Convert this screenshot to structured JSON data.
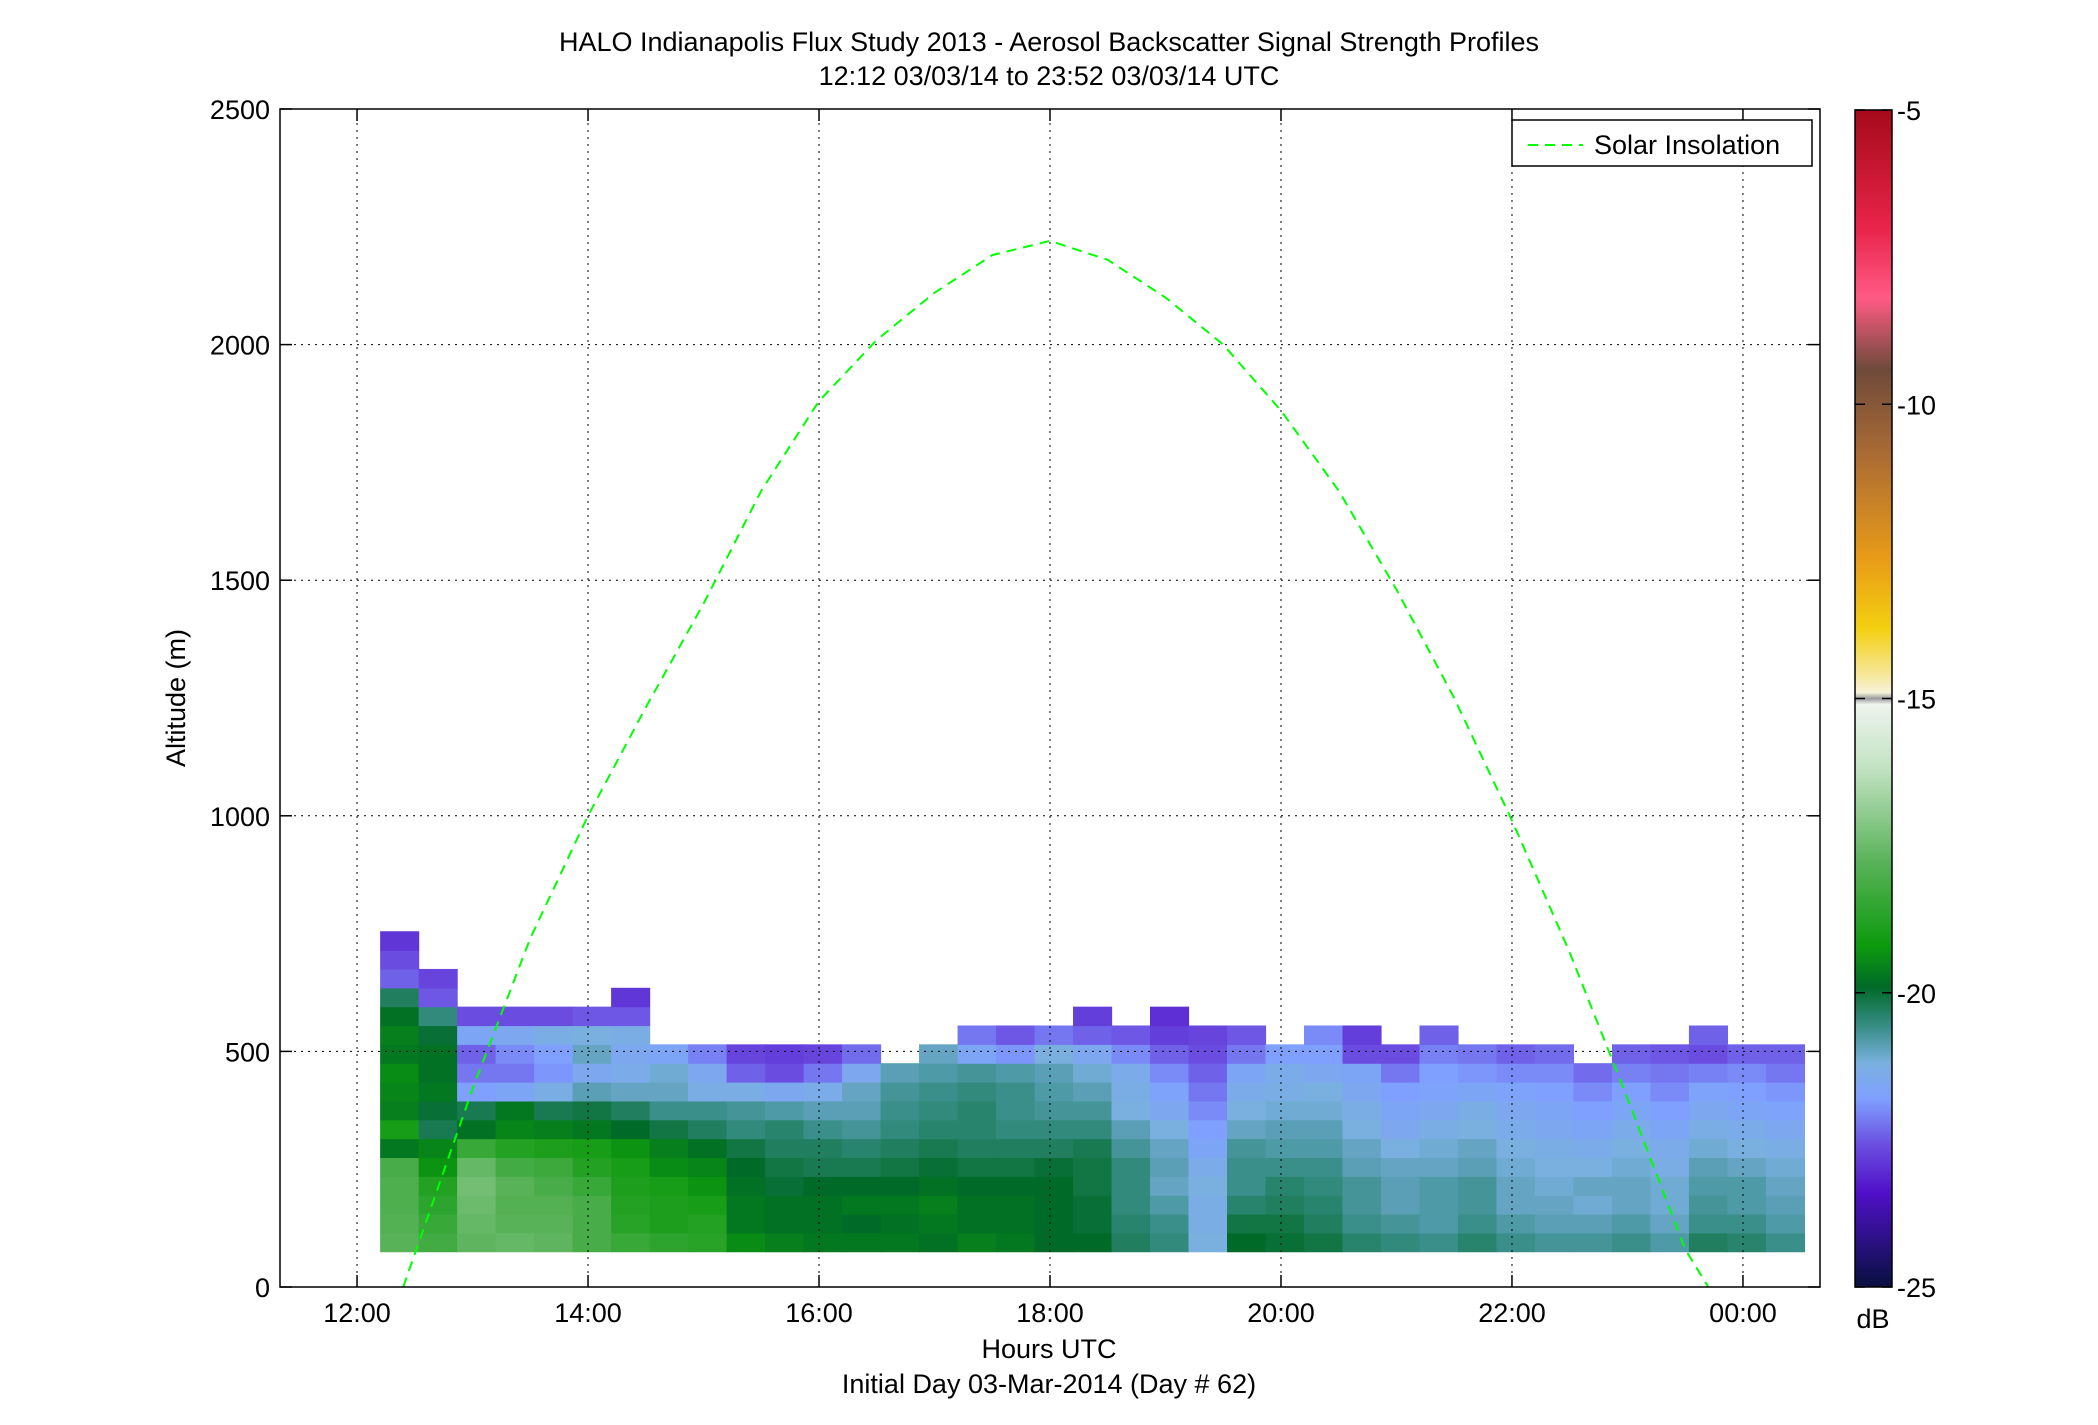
{
  "chart_data": {
    "type": "heatmap",
    "title": "HALO Indianapolis Flux Study 2013 - Aerosol Backscatter Signal Strength Profiles",
    "subtitle": "12:12 03/03/14 to 23:52 03/03/14  UTC",
    "xlabel": "Hours UTC",
    "xlabel2": "Initial Day 03-Mar-2014 (Day # 62)",
    "ylabel": "Altitude (m)",
    "x_ticks": [
      "12:00",
      "14:00",
      "16:00",
      "18:00",
      "20:00",
      "22:00",
      "00:00"
    ],
    "x_tick_hours": [
      12,
      14,
      16,
      18,
      20,
      22,
      24
    ],
    "xlim_hours": [
      11.333,
      24.667
    ],
    "y_ticks": [
      "0",
      "500",
      "1000",
      "1500",
      "2000",
      "2500"
    ],
    "y_tick_values": [
      0,
      500,
      1000,
      1500,
      2000,
      2500
    ],
    "ylim": [
      0,
      2500
    ],
    "grid": true,
    "legend": {
      "position": "top-right",
      "entries": [
        "Solar Insolation"
      ]
    },
    "colorbar": {
      "label": "dB",
      "ticks": [
        "-5",
        "-10",
        "-15",
        "-20",
        "-25"
      ],
      "tick_values": [
        -5,
        -10,
        -15,
        -20,
        -25
      ],
      "range": [
        -25,
        -5
      ]
    },
    "heatmap": {
      "time_start_hours": 12.2,
      "time_step_hours": 0.3333,
      "alt_start_m": 75,
      "alt_step_m": 40,
      "columns": [
        [
          -17.8,
          -17.9,
          -18.0,
          -18.0,
          -18.1,
          -19.7,
          -19.0,
          -19.6,
          -19.5,
          -19.4,
          -19.7,
          -19.6,
          -19.8,
          -20.3,
          -22.4,
          -22.6,
          -22.9
        ],
        [
          -18.2,
          -18.4,
          -18.6,
          -18.8,
          -19.3,
          -19.5,
          -20.2,
          -20.0,
          -19.7,
          -19.8,
          -19.8,
          -20.0,
          -20.5,
          -22.5,
          -22.7
        ],
        [
          -17.7,
          -17.6,
          -17.5,
          -17.4,
          -17.6,
          -18.4,
          -19.8,
          -20.2,
          -21.8,
          -22.2,
          -22.4,
          -21.6,
          -22.6
        ],
        [
          -17.6,
          -17.8,
          -17.9,
          -17.8,
          -18.2,
          -18.8,
          -19.5,
          -19.7,
          -21.6,
          -22.2,
          -22.0,
          -21.5,
          -22.6
        ],
        [
          -17.7,
          -17.8,
          -17.9,
          -18.1,
          -18.3,
          -18.9,
          -19.6,
          -20.2,
          -21.3,
          -21.9,
          -21.8,
          -21.3,
          -22.6
        ],
        [
          -18.1,
          -18.1,
          -18.1,
          -18.4,
          -18.8,
          -19.0,
          -19.7,
          -20.1,
          -20.9,
          -21.5,
          -21.0,
          -21.2,
          -22.5
        ],
        [
          -18.4,
          -18.7,
          -18.8,
          -18.9,
          -19.0,
          -19.3,
          -19.9,
          -20.3,
          -21.0,
          -21.4,
          -21.5,
          -21.3,
          -22.5,
          -22.9
        ],
        [
          -18.6,
          -18.9,
          -18.9,
          -19.0,
          -19.4,
          -19.6,
          -20.1,
          -20.6,
          -21.0,
          -21.1,
          -21.6
        ],
        [
          -18.7,
          -18.8,
          -19.0,
          -19.3,
          -19.5,
          -19.8,
          -20.3,
          -20.6,
          -21.3,
          -21.5,
          -22.1
        ],
        [
          -19.4,
          -19.7,
          -19.7,
          -19.8,
          -19.9,
          -20.1,
          -20.5,
          -20.7,
          -21.3,
          -22.4,
          -22.7
        ],
        [
          -19.6,
          -19.8,
          -19.8,
          -20.0,
          -20.1,
          -20.3,
          -20.4,
          -20.8,
          -21.5,
          -22.6,
          -22.8
        ],
        [
          -19.7,
          -19.8,
          -19.8,
          -19.9,
          -20.2,
          -20.3,
          -20.6,
          -20.9,
          -21.4,
          -22.2,
          -22.7
        ],
        [
          -19.7,
          -19.9,
          -19.7,
          -19.9,
          -20.2,
          -20.4,
          -20.7,
          -20.9,
          -21.0,
          -21.5,
          -22.3
        ],
        [
          -19.7,
          -19.8,
          -19.7,
          -19.9,
          -20.1,
          -20.3,
          -20.5,
          -20.6,
          -20.7,
          -20.9
        ],
        [
          -19.8,
          -19.7,
          -19.6,
          -19.8,
          -20.0,
          -20.2,
          -20.4,
          -20.5,
          -20.6,
          -20.8,
          -21.0
        ],
        [
          -19.6,
          -19.8,
          -19.8,
          -19.9,
          -20.1,
          -20.3,
          -20.4,
          -20.4,
          -20.5,
          -20.7,
          -21.6,
          -22.2
        ],
        [
          -19.7,
          -19.8,
          -19.8,
          -19.9,
          -20.1,
          -20.3,
          -20.5,
          -20.6,
          -20.6,
          -20.8,
          -21.9,
          -22.5
        ],
        [
          -19.9,
          -19.9,
          -19.9,
          -19.9,
          -20.0,
          -20.3,
          -20.5,
          -20.7,
          -20.8,
          -20.9,
          -21.2,
          -22.2
        ],
        [
          -19.9,
          -20.0,
          -20.0,
          -20.1,
          -20.1,
          -20.2,
          -20.5,
          -20.7,
          -20.9,
          -21.1,
          -21.5,
          -22.4,
          -22.8
        ],
        [
          -20.3,
          -20.4,
          -20.5,
          -20.5,
          -20.5,
          -20.7,
          -20.9,
          -21.2,
          -21.3,
          -21.4,
          -22.0,
          -22.5
        ],
        [
          -20.5,
          -20.6,
          -20.8,
          -21.0,
          -20.9,
          -21.0,
          -21.2,
          -21.5,
          -21.7,
          -22.0,
          -22.4,
          -22.8,
          -23.0
        ],
        [
          -21.2,
          -21.3,
          -21.3,
          -21.2,
          -21.4,
          -21.6,
          -21.8,
          -22.0,
          -22.2,
          -22.4,
          -22.6,
          -22.7
        ],
        [
          -19.9,
          -20.1,
          -20.4,
          -20.6,
          -20.6,
          -20.7,
          -21.0,
          -21.2,
          -21.4,
          -21.6,
          -22.2,
          -22.5
        ],
        [
          -20.0,
          -20.1,
          -20.3,
          -20.4,
          -20.6,
          -20.8,
          -20.9,
          -21.1,
          -21.3,
          -21.4,
          -21.8
        ],
        [
          -20.1,
          -20.3,
          -20.4,
          -20.5,
          -20.6,
          -20.8,
          -20.9,
          -21.1,
          -21.2,
          -21.5,
          -21.8,
          -22.0
        ],
        [
          -20.4,
          -20.6,
          -20.7,
          -20.7,
          -20.9,
          -21.0,
          -21.2,
          -21.3,
          -21.5,
          -21.6,
          -22.6,
          -22.8
        ],
        [
          -20.5,
          -20.7,
          -20.9,
          -20.9,
          -21.0,
          -21.2,
          -21.5,
          -21.6,
          -21.8,
          -22.2,
          -22.6
        ],
        [
          -20.6,
          -20.8,
          -20.8,
          -20.8,
          -21.0,
          -21.1,
          -21.3,
          -21.5,
          -21.7,
          -21.8,
          -22.1,
          -22.4
        ],
        [
          -20.4,
          -20.6,
          -20.7,
          -20.7,
          -20.9,
          -21.0,
          -21.2,
          -21.3,
          -21.6,
          -21.9,
          -22.2
        ],
        [
          -20.6,
          -20.8,
          -21.0,
          -21.0,
          -21.1,
          -21.2,
          -21.4,
          -21.5,
          -21.7,
          -22.0,
          -22.4
        ],
        [
          -20.7,
          -20.9,
          -21.0,
          -21.1,
          -21.2,
          -21.3,
          -21.5,
          -21.6,
          -21.8,
          -22.0,
          -22.3
        ],
        [
          -20.7,
          -20.9,
          -21.1,
          -21.0,
          -21.2,
          -21.4,
          -21.6,
          -21.8,
          -22.0,
          -22.3
        ],
        [
          -20.6,
          -20.8,
          -21.0,
          -21.0,
          -21.1,
          -21.2,
          -21.4,
          -21.6,
          -21.8,
          -22.1,
          -22.4
        ],
        [
          -20.8,
          -21.0,
          -21.1,
          -21.1,
          -21.3,
          -21.4,
          -21.6,
          -21.8,
          -22.0,
          -22.2,
          -22.5
        ],
        [
          -20.3,
          -20.6,
          -20.7,
          -20.8,
          -20.9,
          -21.1,
          -21.3,
          -21.5,
          -21.7,
          -22.1,
          -22.6,
          -22.4
        ],
        [
          -20.4,
          -20.6,
          -20.8,
          -20.8,
          -21.0,
          -21.2,
          -21.4,
          -21.6,
          -21.8,
          -22.0,
          -22.4
        ],
        [
          -20.6,
          -20.8,
          -20.9,
          -21.0,
          -21.1,
          -21.3,
          -21.5,
          -21.7,
          -21.9,
          -22.2,
          -22.4
        ]
      ]
    },
    "series": [
      {
        "name": "Solar Insolation",
        "style": "dashed",
        "color": "#00ff00",
        "x_hours": [
          12.4,
          13.0,
          13.5,
          14.0,
          14.5,
          15.0,
          15.5,
          16.0,
          16.5,
          17.0,
          17.5,
          18.0,
          18.5,
          19.0,
          19.5,
          20.0,
          20.5,
          21.0,
          21.5,
          22.0,
          22.5,
          23.0,
          23.5,
          23.7
        ],
        "y": [
          0,
          420,
          740,
          1000,
          1230,
          1450,
          1690,
          1880,
          2010,
          2110,
          2190,
          2220,
          2180,
          2100,
          2000,
          1860,
          1690,
          1480,
          1250,
          990,
          710,
          400,
          80,
          0
        ]
      }
    ]
  },
  "colors": {
    "background": "#ffffff",
    "axis": "#000000",
    "grid": "#000000",
    "solar_line": "#00ff00"
  }
}
